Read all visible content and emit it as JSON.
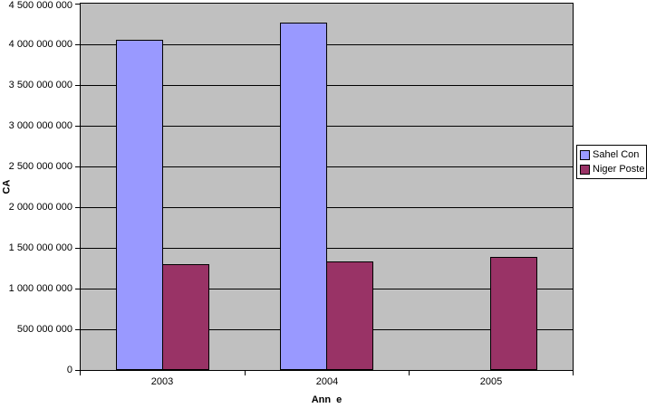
{
  "chart_data": {
    "type": "bar",
    "categories": [
      "2003",
      "2004",
      "2005"
    ],
    "series": [
      {
        "name": "Sahel Con",
        "color": "#9999FF",
        "values": [
          4050000000,
          4270000000,
          null
        ]
      },
      {
        "name": "Niger Poste",
        "color": "#993366",
        "values": [
          1300000000,
          1330000000,
          1390000000
        ]
      }
    ],
    "xlabel": "Ann  e",
    "ylabel": "CA",
    "ylim": [
      0,
      4500000000
    ],
    "ytick_step": 500000000,
    "ytick_labels": [
      "0",
      "500 000 000",
      "1 000 000 000",
      "1 500 000 000",
      "2 000 000 000",
      "2 500 000 000",
      "3 000 000 000",
      "3 500 000 000",
      "4 000 000 000",
      "4 500 000 000"
    ],
    "grid": true,
    "legend_position": "right",
    "colors": {
      "plot_bg": "#C0C0C0",
      "chart_bg": "#FFFFFF",
      "grid": "#000000",
      "text": "#000000"
    }
  }
}
